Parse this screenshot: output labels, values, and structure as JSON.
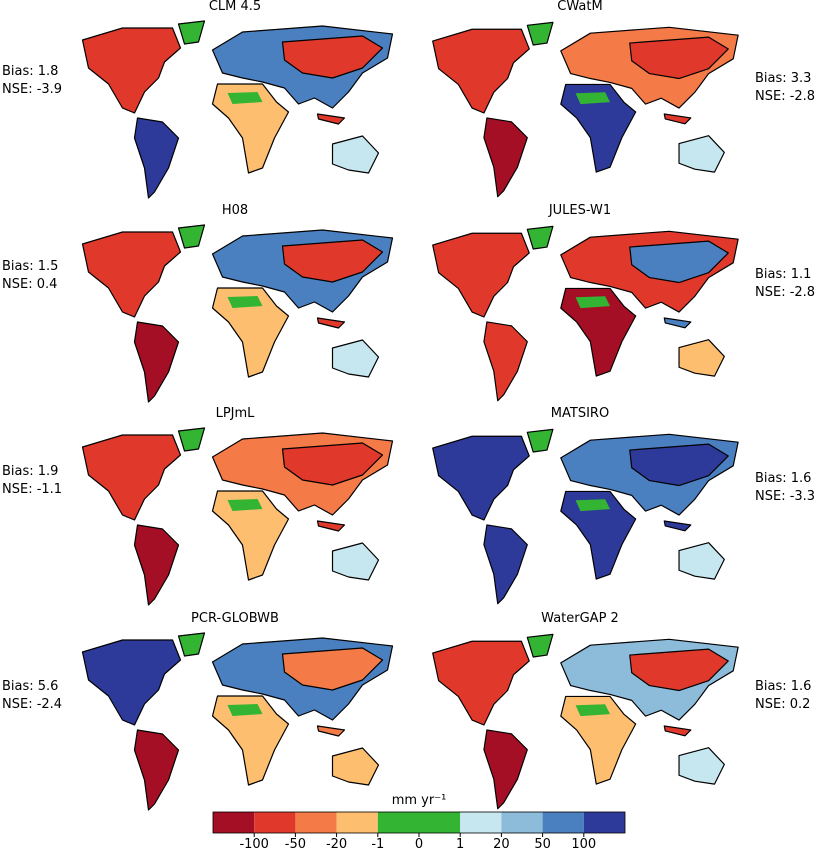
{
  "panels": [
    {
      "title": "CLM 4.5",
      "bias": "Bias:  1.8",
      "nse": "NSE: -3.9"
    },
    {
      "title": "CWatM",
      "bias": "Bias:  3.3",
      "nse": "NSE: -2.8"
    },
    {
      "title": "H08",
      "bias": "Bias: 1.5",
      "nse": "NSE: 0.4"
    },
    {
      "title": "JULES-W1",
      "bias": "Bias:  1.1",
      "nse": "NSE: -2.8"
    },
    {
      "title": "LPJmL",
      "bias": "Bias:  1.9",
      "nse": "NSE: -1.1"
    },
    {
      "title": "MATSIRO",
      "bias": "Bias:  1.6",
      "nse": "NSE: -3.3"
    },
    {
      "title": "PCR-GLOBWB",
      "bias": "Bias:  5.6",
      "nse": "NSE: -2.4"
    },
    {
      "title": "WaterGAP 2",
      "bias": "Bias: 1.6",
      "nse": "NSE: 0.2"
    }
  ],
  "colorbar": {
    "label": "mm yr⁻¹",
    "colors": [
      "#a50f26",
      "#e0392b",
      "#f47a47",
      "#fdbf6f",
      "#33b533",
      "#33b533",
      "#c6e6f0",
      "#8dbcdb",
      "#4a7fc0",
      "#2e3a9a"
    ],
    "ticks": [
      -100,
      -50,
      -20,
      -1,
      0,
      1,
      20,
      50,
      100
    ]
  }
}
